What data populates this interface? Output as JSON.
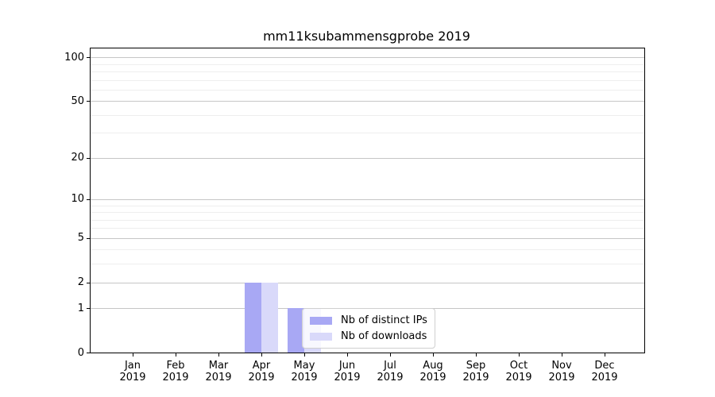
{
  "chart_data": {
    "type": "bar",
    "title": "mm11ksubammensgprobe 2019",
    "categories": [
      "Jan",
      "Feb",
      "Mar",
      "Apr",
      "May",
      "Jun",
      "Jul",
      "Aug",
      "Sep",
      "Oct",
      "Nov",
      "Dec"
    ],
    "xticklabels": [
      {
        "line1": "Jan",
        "line2": "2019"
      },
      {
        "line1": "Feb",
        "line2": "2019"
      },
      {
        "line1": "Mar",
        "line2": "2019"
      },
      {
        "line1": "Apr",
        "line2": "2019"
      },
      {
        "line1": "May",
        "line2": "2019"
      },
      {
        "line1": "Jun",
        "line2": "2019"
      },
      {
        "line1": "Jul",
        "line2": "2019"
      },
      {
        "line1": "Aug",
        "line2": "2019"
      },
      {
        "line1": "Sep",
        "line2": "2019"
      },
      {
        "line1": "Oct",
        "line2": "2019"
      },
      {
        "line1": "Nov",
        "line2": "2019"
      },
      {
        "line1": "Dec",
        "line2": "2019"
      }
    ],
    "series": [
      {
        "name": "Nb of distinct IPs",
        "color": "#a8a8f4",
        "values": [
          0,
          0,
          0,
          2,
          1,
          0,
          0,
          0,
          0,
          0,
          0,
          0
        ]
      },
      {
        "name": "Nb of downloads",
        "color": "#d9d9fa",
        "values": [
          0,
          0,
          0,
          2,
          1,
          0,
          0,
          0,
          0,
          0,
          0,
          0
        ]
      }
    ],
    "yscale": "log1p",
    "ylim": [
      0,
      115
    ],
    "yticks_major": [
      100,
      50,
      20,
      10,
      5,
      2,
      1,
      0
    ],
    "ytick_labels": [
      "100",
      "50",
      "20",
      "10",
      "5",
      "2",
      "1",
      "0"
    ],
    "yticks_minor": [
      3,
      4,
      6,
      7,
      8,
      9,
      30,
      40,
      60,
      70,
      80,
      90
    ],
    "grid": "horizontal",
    "legend_position": "inside-bottom-center",
    "colors": {
      "grid_major": "#c6c6c6",
      "grid_minor": "#eeeeee",
      "spine": "#000000",
      "background": "#ffffff"
    }
  }
}
